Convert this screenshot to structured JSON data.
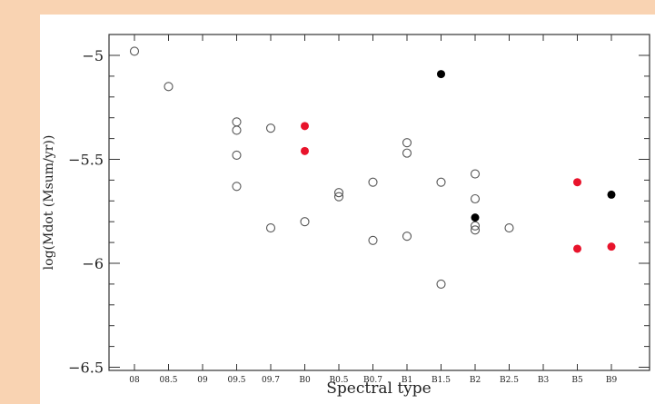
{
  "chart_data": {
    "type": "scatter",
    "title": "",
    "xlabel": "Spectral type",
    "ylabel": "log(Mdot (Msum/yr))",
    "categories": [
      "08",
      "08.5",
      "09",
      "09.5",
      "09.7",
      "B0",
      "B0.5",
      "B0.7",
      "B1",
      "B1.5",
      "B2",
      "B2.5",
      "B3",
      "B5",
      "B9"
    ],
    "yticks": [
      -5,
      -5.5,
      -6,
      -6.5
    ],
    "ytick_labels": [
      "−5",
      "−5.5",
      "−6",
      "−6.5"
    ],
    "ylim": [
      -6.5,
      -4.9
    ],
    "grid": false,
    "legend": "none",
    "colors": {
      "open": "#555555",
      "red": "#e8132b",
      "black": "#000000"
    },
    "series": [
      {
        "marker": "open",
        "points": [
          {
            "x": "08",
            "y": -4.98
          },
          {
            "x": "08.5",
            "y": -5.15
          },
          {
            "x": "09.5",
            "y": -5.32
          },
          {
            "x": "09.5",
            "y": -5.36
          },
          {
            "x": "09.5",
            "y": -5.48
          },
          {
            "x": "09.5",
            "y": -5.63
          },
          {
            "x": "09.7",
            "y": -5.35
          },
          {
            "x": "09.7",
            "y": -5.83
          },
          {
            "x": "B0",
            "y": -5.8
          },
          {
            "x": "B0.5",
            "y": -5.66
          },
          {
            "x": "B0.5",
            "y": -5.68
          },
          {
            "x": "B0.7",
            "y": -5.61
          },
          {
            "x": "B0.7",
            "y": -5.89
          },
          {
            "x": "B1",
            "y": -5.42
          },
          {
            "x": "B1",
            "y": -5.47
          },
          {
            "x": "B1",
            "y": -5.87
          },
          {
            "x": "B1.5",
            "y": -5.61
          },
          {
            "x": "B1.5",
            "y": -6.1
          },
          {
            "x": "B2",
            "y": -5.57
          },
          {
            "x": "B2",
            "y": -5.69
          },
          {
            "x": "B2",
            "y": -5.82
          },
          {
            "x": "B2",
            "y": -5.84
          },
          {
            "x": "B2.5",
            "y": -5.83
          }
        ]
      },
      {
        "marker": "red",
        "points": [
          {
            "x": "B0",
            "y": -5.34
          },
          {
            "x": "B0",
            "y": -5.46
          },
          {
            "x": "B5",
            "y": -5.61
          },
          {
            "x": "B5",
            "y": -5.93
          },
          {
            "x": "B9",
            "y": -5.92
          }
        ]
      },
      {
        "marker": "black",
        "points": [
          {
            "x": "B1.5",
            "y": -5.09
          },
          {
            "x": "B2",
            "y": -5.78
          },
          {
            "x": "B9",
            "y": -5.67
          }
        ]
      }
    ]
  }
}
